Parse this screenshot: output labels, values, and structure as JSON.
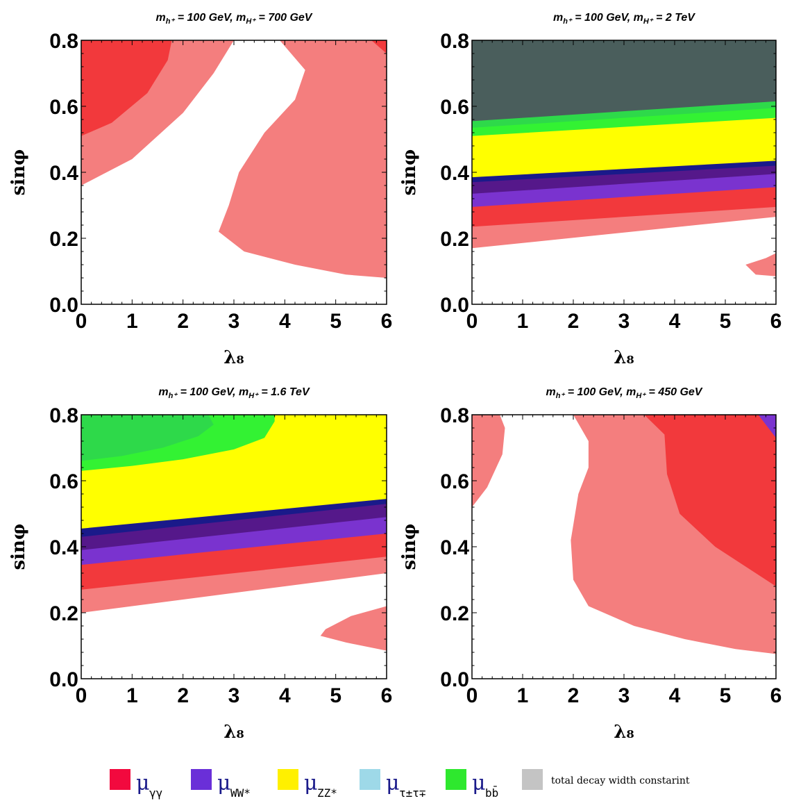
{
  "colors": {
    "light_red": "#F47E7E",
    "red": "#F2393C",
    "navy": "#1A1A8A",
    "purple_dark": "#55188A",
    "purple": "#7A33CF",
    "yellow": "#FFFF00",
    "green_bright": "#33F233",
    "green_dark": "#2ED94A",
    "gray_dark": "#4A5E5C"
  },
  "chart_data": [
    {
      "type": "contour",
      "title": "m_{h⁺} = 100 GeV, m_{H⁺} = 700 GeV",
      "title_parts": {
        "a": "m",
        "a_sub": "h⁺",
        "b": " = 100 GeV, ",
        "c": "m",
        "c_sub": "H⁺",
        "d": " = 700 GeV"
      },
      "xlabel": "λ₈",
      "ylabel": "sinφ",
      "xlim": [
        0,
        6
      ],
      "ylim": [
        0,
        0.8
      ],
      "xticks": [
        "0",
        "1",
        "2",
        "3",
        "4",
        "5",
        "6"
      ],
      "yticks": [
        "0.0",
        "0.2",
        "0.4",
        "0.6",
        "0.8"
      ],
      "regions": [
        {
          "color": "light_red",
          "points": [
            [
              0,
              0.36
            ],
            [
              1,
              0.44
            ],
            [
              2,
              0.58
            ],
            [
              2.6,
              0.7
            ],
            [
              3,
              0.8
            ],
            [
              0,
              0.8
            ]
          ]
        },
        {
          "color": "red",
          "points": [
            [
              0,
              0.51
            ],
            [
              0.6,
              0.55
            ],
            [
              1.3,
              0.64
            ],
            [
              1.7,
              0.74
            ],
            [
              1.78,
              0.8
            ],
            [
              0,
              0.8
            ]
          ]
        },
        {
          "color": "light_red",
          "points": [
            [
              3.9,
              0.8
            ],
            [
              4.4,
              0.71
            ],
            [
              4.2,
              0.62
            ],
            [
              3.6,
              0.52
            ],
            [
              3.1,
              0.4
            ],
            [
              2.9,
              0.3
            ],
            [
              2.7,
              0.22
            ],
            [
              3.2,
              0.16
            ],
            [
              4.2,
              0.12
            ],
            [
              5.2,
              0.09
            ],
            [
              6,
              0.08
            ],
            [
              6,
              0.8
            ]
          ]
        },
        {
          "color": "red",
          "points": [
            [
              5.7,
              0.8
            ],
            [
              6,
              0.8
            ],
            [
              6,
              0.76
            ]
          ]
        }
      ]
    },
    {
      "type": "contour",
      "title": "m_{h⁺} = 100 GeV, m_{H⁺} = 2 TeV",
      "title_parts": {
        "a": "m",
        "a_sub": "h⁺",
        "b": " = 100 GeV, ",
        "c": "m",
        "c_sub": "H⁺",
        "d": " = 2 TeV"
      },
      "xlabel": "λ₈",
      "ylabel": "sinφ",
      "xlim": [
        0,
        6
      ],
      "ylim": [
        0,
        0.8
      ],
      "xticks": [
        "0",
        "1",
        "2",
        "3",
        "4",
        "5",
        "6"
      ],
      "yticks": [
        "0.0",
        "0.2",
        "0.4",
        "0.6",
        "0.8"
      ],
      "regions": [
        {
          "color": "light_red",
          "points": [
            [
              0,
              0.17
            ],
            [
              6,
              0.265
            ],
            [
              6,
              0.8
            ],
            [
              0,
              0.8
            ]
          ]
        },
        {
          "color": "red",
          "points": [
            [
              0,
              0.235
            ],
            [
              6,
              0.295
            ],
            [
              6,
              0.8
            ],
            [
              0,
              0.8
            ]
          ]
        },
        {
          "color": "purple",
          "points": [
            [
              0,
              0.295
            ],
            [
              6,
              0.355
            ],
            [
              6,
              0.8
            ],
            [
              0,
              0.8
            ]
          ]
        },
        {
          "color": "purple_dark",
          "points": [
            [
              0,
              0.335
            ],
            [
              6,
              0.395
            ],
            [
              6,
              0.8
            ],
            [
              0,
              0.8
            ]
          ]
        },
        {
          "color": "navy",
          "points": [
            [
              0,
              0.37
            ],
            [
              6,
              0.42
            ],
            [
              6,
              0.8
            ],
            [
              0,
              0.8
            ]
          ]
        },
        {
          "color": "yellow",
          "points": [
            [
              0,
              0.385
            ],
            [
              6,
              0.435
            ],
            [
              6,
              0.8
            ],
            [
              0,
              0.8
            ]
          ]
        },
        {
          "color": "green_bright",
          "points": [
            [
              0,
              0.51
            ],
            [
              6,
              0.565
            ],
            [
              6,
              0.8
            ],
            [
              0,
              0.8
            ]
          ]
        },
        {
          "color": "green_dark",
          "points": [
            [
              0,
              0.535
            ],
            [
              6,
              0.595
            ],
            [
              6,
              0.8
            ],
            [
              0,
              0.8
            ]
          ]
        },
        {
          "color": "gray_dark",
          "points": [
            [
              0,
              0.555
            ],
            [
              6,
              0.615
            ],
            [
              6,
              0.8
            ],
            [
              0,
              0.8
            ]
          ]
        },
        {
          "color": "light_red",
          "points": [
            [
              5.6,
              0.09
            ],
            [
              5.4,
              0.12
            ],
            [
              5.8,
              0.14
            ],
            [
              6,
              0.155
            ],
            [
              6,
              0.085
            ]
          ]
        }
      ]
    },
    {
      "type": "contour",
      "title": "m_{h⁺} = 100 GeV, m_{H⁺} = 1.6 TeV",
      "title_parts": {
        "a": "m",
        "a_sub": "h⁺",
        "b": " = 100 GeV, ",
        "c": "m",
        "c_sub": "H⁺",
        "d": " = 1.6 TeV"
      },
      "xlabel": "λ₈",
      "ylabel": "sinφ",
      "xlim": [
        0,
        6
      ],
      "ylim": [
        0,
        0.8
      ],
      "xticks": [
        "0",
        "1",
        "2",
        "3",
        "4",
        "5",
        "6"
      ],
      "yticks": [
        "0.0",
        "0.2",
        "0.4",
        "0.6",
        "0.8"
      ],
      "regions": [
        {
          "color": "light_red",
          "points": [
            [
              0,
              0.2
            ],
            [
              6,
              0.32
            ],
            [
              6,
              0.8
            ],
            [
              0,
              0.8
            ]
          ]
        },
        {
          "color": "red",
          "points": [
            [
              0,
              0.27
            ],
            [
              6,
              0.37
            ],
            [
              6,
              0.8
            ],
            [
              0,
              0.8
            ]
          ]
        },
        {
          "color": "purple",
          "points": [
            [
              0,
              0.345
            ],
            [
              6,
              0.44
            ],
            [
              6,
              0.8
            ],
            [
              0,
              0.8
            ]
          ]
        },
        {
          "color": "purple_dark",
          "points": [
            [
              0,
              0.39
            ],
            [
              6,
              0.49
            ],
            [
              6,
              0.8
            ],
            [
              0,
              0.8
            ]
          ]
        },
        {
          "color": "navy",
          "points": [
            [
              0,
              0.43
            ],
            [
              6,
              0.53
            ],
            [
              6,
              0.8
            ],
            [
              0,
              0.8
            ]
          ]
        },
        {
          "color": "yellow",
          "points": [
            [
              0,
              0.455
            ],
            [
              6,
              0.545
            ],
            [
              6,
              0.8
            ],
            [
              0,
              0.8
            ]
          ]
        },
        {
          "color": "green_bright",
          "points": [
            [
              0,
              0.63
            ],
            [
              1,
              0.645
            ],
            [
              2,
              0.665
            ],
            [
              3,
              0.695
            ],
            [
              3.6,
              0.73
            ],
            [
              3.8,
              0.78
            ],
            [
              3.8,
              0.8
            ],
            [
              0,
              0.8
            ]
          ]
        },
        {
          "color": "green_dark",
          "points": [
            [
              0,
              0.66
            ],
            [
              0.8,
              0.675
            ],
            [
              1.6,
              0.7
            ],
            [
              2.3,
              0.735
            ],
            [
              2.6,
              0.77
            ],
            [
              2.5,
              0.8
            ],
            [
              0,
              0.8
            ]
          ]
        },
        {
          "color": "light_red",
          "points": [
            [
              6,
              0.22
            ],
            [
              5.3,
              0.19
            ],
            [
              4.8,
              0.15
            ],
            [
              4.7,
              0.13
            ],
            [
              5.2,
              0.11
            ],
            [
              6,
              0.085
            ]
          ]
        }
      ]
    },
    {
      "type": "contour",
      "title": "m_{h⁺} = 100 GeV, m_{H⁺} = 450 GeV",
      "title_parts": {
        "a": "m",
        "a_sub": "h⁺",
        "b": " = 100 GeV, ",
        "c": "m",
        "c_sub": "H⁺",
        "d": " = 450 GeV"
      },
      "xlabel": "λ₈",
      "ylabel": "sinφ",
      "xlim": [
        0,
        6
      ],
      "ylim": [
        0,
        0.8
      ],
      "xticks": [
        "0",
        "1",
        "2",
        "3",
        "4",
        "5",
        "6"
      ],
      "yticks": [
        "0.0",
        "0.2",
        "0.4",
        "0.6",
        "0.8"
      ],
      "regions": [
        {
          "color": "light_red",
          "points": [
            [
              0,
              0.52
            ],
            [
              0.3,
              0.58
            ],
            [
              0.6,
              0.68
            ],
            [
              0.65,
              0.76
            ],
            [
              0.55,
              0.8
            ],
            [
              0,
              0.8
            ]
          ]
        },
        {
          "color": "light_red",
          "points": [
            [
              2.0,
              0.8
            ],
            [
              2.3,
              0.72
            ],
            [
              2.3,
              0.64
            ],
            [
              2.1,
              0.56
            ],
            [
              1.95,
              0.42
            ],
            [
              2.0,
              0.3
            ],
            [
              2.3,
              0.22
            ],
            [
              3.2,
              0.16
            ],
            [
              4.2,
              0.12
            ],
            [
              5.2,
              0.09
            ],
            [
              6,
              0.075
            ],
            [
              6,
              0.8
            ]
          ]
        },
        {
          "color": "red",
          "points": [
            [
              3.4,
              0.8
            ],
            [
              3.8,
              0.74
            ],
            [
              3.85,
              0.62
            ],
            [
              4.1,
              0.5
            ],
            [
              4.8,
              0.4
            ],
            [
              5.5,
              0.33
            ],
            [
              6,
              0.28
            ],
            [
              6,
              0.8
            ]
          ]
        },
        {
          "color": "purple",
          "points": [
            [
              5.65,
              0.8
            ],
            [
              6,
              0.8
            ],
            [
              6,
              0.73
            ],
            [
              5.85,
              0.76
            ]
          ]
        }
      ]
    }
  ],
  "legend": {
    "items": [
      {
        "color": "#F2093E",
        "mu": "μ",
        "sub": "γγ"
      },
      {
        "color": "#6A2FD8",
        "mu": "μ",
        "sub": "WW*"
      },
      {
        "color": "#FFF000",
        "mu": "μ",
        "sub": "ZZ*"
      },
      {
        "color": "#9ED9E8",
        "mu": "μ",
        "sub": "τ±τ∓"
      },
      {
        "color": "#2EE82E",
        "mu": "μ",
        "sub": "bb̄"
      },
      {
        "color": "#C4C4C4",
        "text": "total decay width constarint"
      }
    ]
  }
}
